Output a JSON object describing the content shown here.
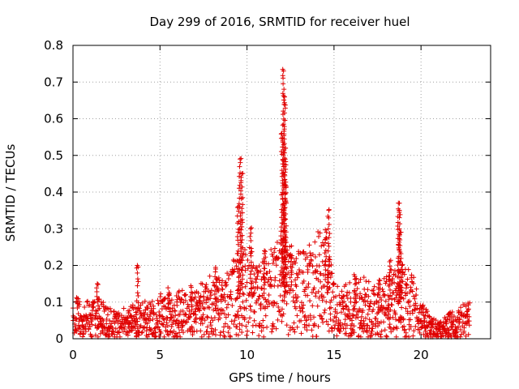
{
  "chart_data": {
    "type": "scatter",
    "title": "Day 299 of 2016, SRMTID for receiver huel",
    "xlabel": "GPS time / hours",
    "ylabel": "SRMTID / TECUs",
    "xlim": [
      0,
      24
    ],
    "ylim": [
      0,
      0.8
    ],
    "xticks": [
      0,
      5,
      10,
      15,
      20
    ],
    "yticks": [
      0,
      0.1,
      0.2,
      0.3,
      0.4,
      0.5,
      0.6,
      0.7,
      0.8
    ],
    "xtick_labels": [
      "0",
      "5",
      "10",
      "15",
      "20"
    ],
    "ytick_labels": [
      "0",
      "0.1",
      "0.2",
      "0.3",
      "0.4",
      "0.5",
      "0.6",
      "0.7",
      "0.8"
    ],
    "grid": true,
    "marker": "+",
    "color": "#e00000",
    "series": [
      {
        "name": "SRMTID",
        "baseline": [
          [
            0.0,
            0.07
          ],
          [
            0.5,
            0.05
          ],
          [
            1.0,
            0.05
          ],
          [
            1.5,
            0.06
          ],
          [
            2.0,
            0.04
          ],
          [
            2.5,
            0.035
          ],
          [
            3.0,
            0.04
          ],
          [
            3.5,
            0.045
          ],
          [
            4.0,
            0.05
          ],
          [
            4.5,
            0.05
          ],
          [
            5.0,
            0.06
          ],
          [
            5.5,
            0.07
          ],
          [
            6.0,
            0.07
          ],
          [
            6.5,
            0.06
          ],
          [
            7.0,
            0.07
          ],
          [
            7.5,
            0.08
          ],
          [
            8.0,
            0.09
          ],
          [
            8.5,
            0.08
          ],
          [
            9.0,
            0.1
          ],
          [
            9.5,
            0.12
          ],
          [
            10.0,
            0.13
          ],
          [
            10.5,
            0.12
          ],
          [
            11.0,
            0.11
          ],
          [
            11.5,
            0.13
          ],
          [
            12.0,
            0.15
          ],
          [
            12.5,
            0.13
          ],
          [
            13.0,
            0.12
          ],
          [
            13.5,
            0.13
          ],
          [
            14.0,
            0.15
          ],
          [
            14.5,
            0.16
          ],
          [
            15.0,
            0.08
          ],
          [
            15.5,
            0.07
          ],
          [
            16.0,
            0.08
          ],
          [
            16.5,
            0.09
          ],
          [
            17.0,
            0.08
          ],
          [
            17.5,
            0.07
          ],
          [
            18.0,
            0.09
          ],
          [
            18.5,
            0.1
          ],
          [
            19.0,
            0.11
          ],
          [
            19.5,
            0.09
          ],
          [
            20.0,
            0.05
          ],
          [
            20.5,
            0.03
          ],
          [
            21.0,
            0.02
          ],
          [
            21.5,
            0.03
          ],
          [
            22.0,
            0.04
          ],
          [
            22.5,
            0.05
          ],
          [
            22.8,
            0.05
          ]
        ],
        "spikes": [
          [
            1.4,
            0.15
          ],
          [
            3.7,
            0.2
          ],
          [
            5.5,
            0.12
          ],
          [
            6.8,
            0.14
          ],
          [
            8.2,
            0.19
          ],
          [
            9.6,
            0.49
          ],
          [
            9.7,
            0.45
          ],
          [
            9.5,
            0.36
          ],
          [
            10.2,
            0.3
          ],
          [
            11.0,
            0.24
          ],
          [
            12.0,
            0.56
          ],
          [
            12.1,
            0.73
          ],
          [
            12.15,
            0.66
          ],
          [
            12.2,
            0.52
          ],
          [
            12.2,
            0.42
          ],
          [
            12.5,
            0.23
          ],
          [
            14.7,
            0.35
          ],
          [
            14.5,
            0.27
          ],
          [
            16.2,
            0.17
          ],
          [
            17.6,
            0.16
          ],
          [
            18.2,
            0.21
          ],
          [
            18.7,
            0.37
          ],
          [
            18.75,
            0.35
          ],
          [
            18.8,
            0.29
          ],
          [
            18.9,
            0.2
          ]
        ]
      }
    ]
  }
}
